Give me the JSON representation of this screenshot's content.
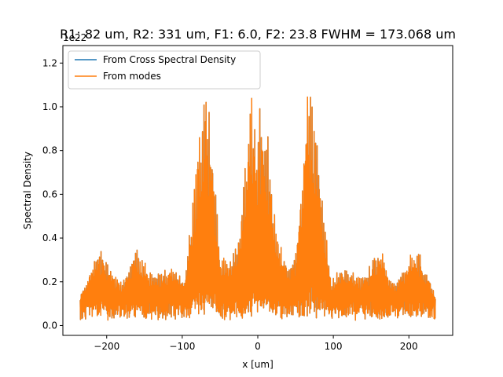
{
  "chart_data": {
    "type": "line",
    "title": "R1: 82 um, R2: 331 um, F1:  6.0, F2: 23.8  FWHM = 173.068 um",
    "xlabel": "x [um]",
    "ylabel": "Spectral Density",
    "y_scale_label": "1e22",
    "xlim": [
      -258,
      258
    ],
    "ylim": [
      -0.045,
      1.28
    ],
    "y_multiplier": 1e+22,
    "xticks": [
      -200,
      -100,
      0,
      100,
      200
    ],
    "xtick_labels": [
      "−200",
      "−100",
      "0",
      "100",
      "200"
    ],
    "yticks": [
      0.0,
      0.2,
      0.4,
      0.6,
      0.8,
      1.0,
      1.2
    ],
    "ytick_labels": [
      "0.0",
      "0.2",
      "0.4",
      "0.6",
      "0.8",
      "1.0",
      "1.2"
    ],
    "grid": false,
    "legend_position": "upper-left",
    "series": [
      {
        "name": "From Cross Spectral Density",
        "color": "#1f77b4",
        "x_range": [
          -235,
          235
        ],
        "envelope_points": [
          [
            -235,
            0.14
          ],
          [
            -225,
            0.24
          ],
          [
            -215,
            0.33
          ],
          [
            -205,
            0.35
          ],
          [
            -198,
            0.3
          ],
          [
            -190,
            0.24
          ],
          [
            -180,
            0.2
          ],
          [
            -172,
            0.26
          ],
          [
            -163,
            0.37
          ],
          [
            -155,
            0.33
          ],
          [
            -145,
            0.26
          ],
          [
            -135,
            0.23
          ],
          [
            -125,
            0.25
          ],
          [
            -115,
            0.27
          ],
          [
            -105,
            0.25
          ],
          [
            -97,
            0.2
          ],
          [
            -92,
            0.4
          ],
          [
            -85,
            0.62
          ],
          [
            -78,
            0.92
          ],
          [
            -72,
            1.05
          ],
          [
            -68,
            1.2
          ],
          [
            -63,
            1.05
          ],
          [
            -58,
            0.7
          ],
          [
            -50,
            0.35
          ],
          [
            -40,
            0.3
          ],
          [
            -30,
            0.37
          ],
          [
            -22,
            0.52
          ],
          [
            -15,
            0.82
          ],
          [
            -8,
            1.1
          ],
          [
            -4,
            1.13
          ],
          [
            0,
            0.88
          ],
          [
            4,
            1.13
          ],
          [
            8,
            1.1
          ],
          [
            15,
            0.82
          ],
          [
            22,
            0.52
          ],
          [
            30,
            0.37
          ],
          [
            40,
            0.3
          ],
          [
            50,
            0.35
          ],
          [
            58,
            0.7
          ],
          [
            63,
            1.05
          ],
          [
            68,
            1.2
          ],
          [
            72,
            1.05
          ],
          [
            78,
            0.92
          ],
          [
            85,
            0.62
          ],
          [
            92,
            0.4
          ],
          [
            97,
            0.2
          ],
          [
            105,
            0.25
          ],
          [
            115,
            0.27
          ],
          [
            125,
            0.25
          ],
          [
            135,
            0.23
          ],
          [
            145,
            0.26
          ],
          [
            155,
            0.33
          ],
          [
            163,
            0.37
          ],
          [
            172,
            0.26
          ],
          [
            180,
            0.2
          ],
          [
            190,
            0.24
          ],
          [
            198,
            0.3
          ],
          [
            205,
            0.35
          ],
          [
            215,
            0.33
          ],
          [
            225,
            0.24
          ],
          [
            235,
            0.14
          ]
        ],
        "baseline": 0.09
      },
      {
        "name": "From modes",
        "color": "#ff7f0e",
        "x_range": [
          -235,
          235
        ],
        "envelope_points": [
          [
            -235,
            0.14
          ],
          [
            -225,
            0.24
          ],
          [
            -215,
            0.33
          ],
          [
            -205,
            0.35
          ],
          [
            -198,
            0.3
          ],
          [
            -190,
            0.24
          ],
          [
            -180,
            0.2
          ],
          [
            -172,
            0.26
          ],
          [
            -163,
            0.37
          ],
          [
            -155,
            0.33
          ],
          [
            -145,
            0.26
          ],
          [
            -135,
            0.23
          ],
          [
            -125,
            0.25
          ],
          [
            -115,
            0.27
          ],
          [
            -105,
            0.25
          ],
          [
            -97,
            0.2
          ],
          [
            -92,
            0.4
          ],
          [
            -85,
            0.62
          ],
          [
            -78,
            0.92
          ],
          [
            -72,
            1.05
          ],
          [
            -68,
            1.2
          ],
          [
            -63,
            1.05
          ],
          [
            -58,
            0.7
          ],
          [
            -50,
            0.35
          ],
          [
            -40,
            0.3
          ],
          [
            -30,
            0.37
          ],
          [
            -22,
            0.52
          ],
          [
            -15,
            0.82
          ],
          [
            -8,
            1.1
          ],
          [
            -4,
            1.13
          ],
          [
            0,
            0.88
          ],
          [
            4,
            1.13
          ],
          [
            8,
            1.1
          ],
          [
            15,
            0.82
          ],
          [
            22,
            0.52
          ],
          [
            30,
            0.37
          ],
          [
            40,
            0.3
          ],
          [
            50,
            0.35
          ],
          [
            58,
            0.7
          ],
          [
            63,
            1.05
          ],
          [
            68,
            1.2
          ],
          [
            72,
            1.05
          ],
          [
            78,
            0.92
          ],
          [
            85,
            0.62
          ],
          [
            92,
            0.4
          ],
          [
            97,
            0.2
          ],
          [
            105,
            0.25
          ],
          [
            115,
            0.27
          ],
          [
            125,
            0.25
          ],
          [
            135,
            0.23
          ],
          [
            145,
            0.26
          ],
          [
            155,
            0.33
          ],
          [
            163,
            0.37
          ],
          [
            172,
            0.26
          ],
          [
            180,
            0.2
          ],
          [
            190,
            0.24
          ],
          [
            198,
            0.3
          ],
          [
            205,
            0.35
          ],
          [
            215,
            0.33
          ],
          [
            225,
            0.24
          ],
          [
            235,
            0.14
          ]
        ],
        "baseline": 0.09
      }
    ]
  }
}
